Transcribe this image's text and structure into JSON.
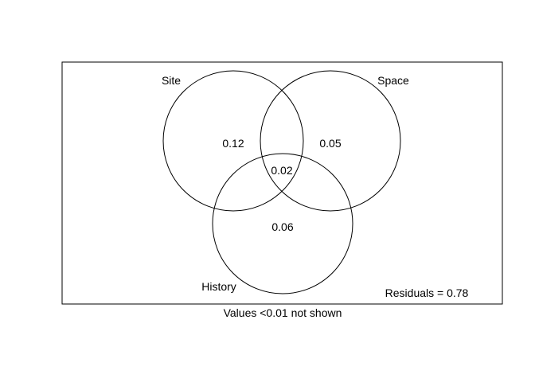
{
  "sets": [
    {
      "name": "Site"
    },
    {
      "name": "Space"
    },
    {
      "name": "History"
    }
  ],
  "regions": {
    "site_only": "0.12",
    "space_only": "0.05",
    "site_space_history": "0.02",
    "history_only": "0.06"
  },
  "residuals_label": "Residuals = 0.78",
  "footnote": "Values <0.01 not shown"
}
